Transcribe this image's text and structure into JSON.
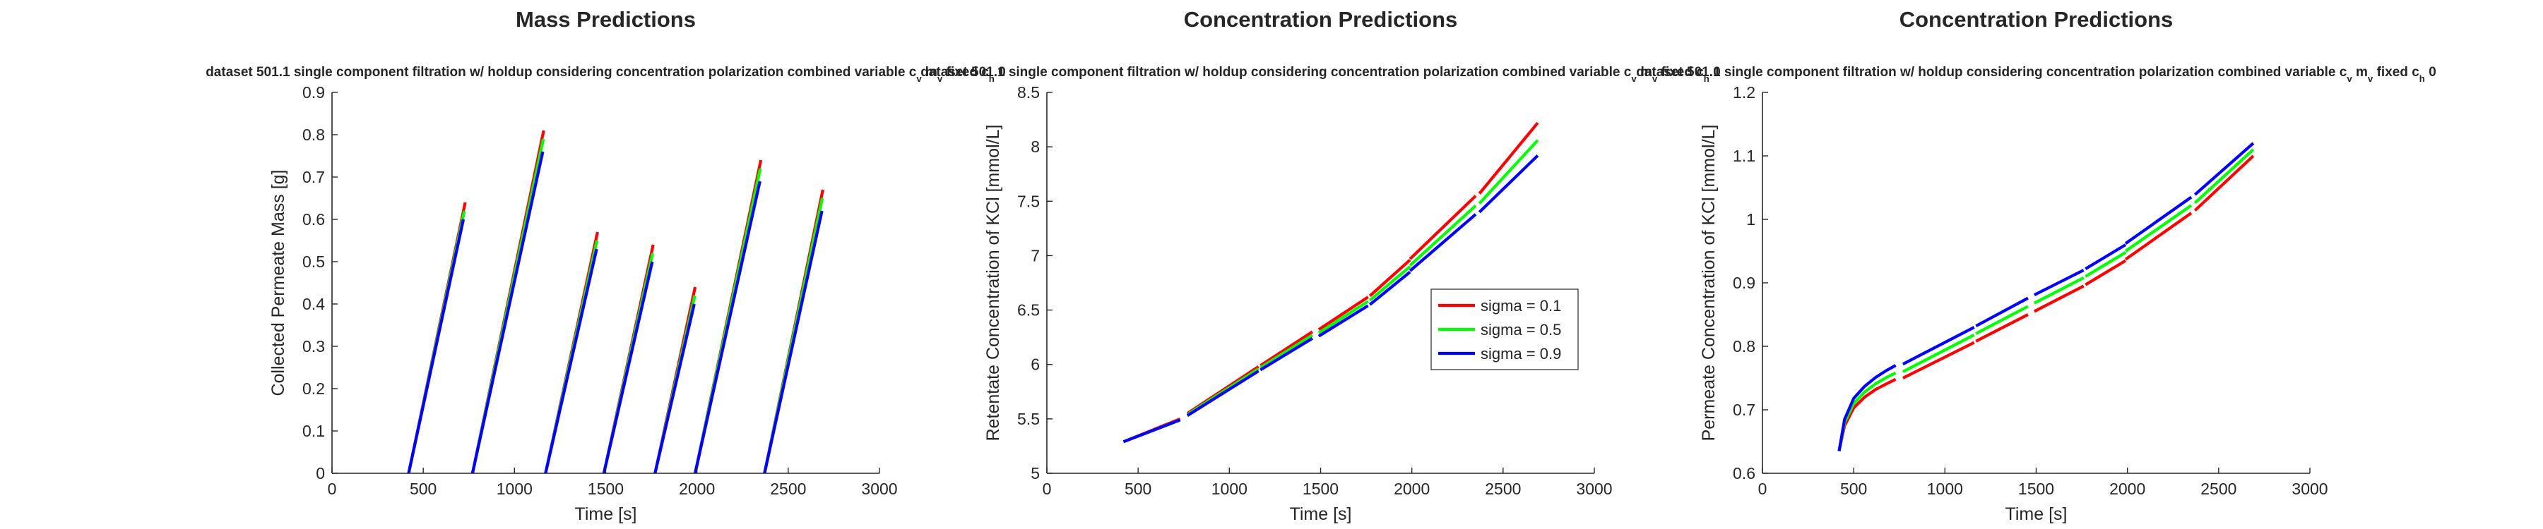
{
  "figure": {
    "legend_entries": [
      "sigma = 0.1",
      "sigma = 0.5",
      "sigma = 0.9"
    ],
    "colors": {
      "sigma_0_1": "#ff0000",
      "sigma_0_5": "#00ff00",
      "sigma_0_9": "#0000ff"
    }
  },
  "chart_data": [
    {
      "type": "line",
      "title": "Mass Predictions",
      "subtitle": "dataset 501.1 single component filtration w/ holdup considering concentration polarization combined variable c_v m_v fixed c_h 0",
      "xlabel": "Time [s]",
      "ylabel": "Collected Permeate Mass [g]",
      "xlim": [
        0,
        3000
      ],
      "ylim": [
        0,
        0.9
      ],
      "xticks": [
        "0",
        "500",
        "1000",
        "1500",
        "2000",
        "2500",
        "3000"
      ],
      "yticks": [
        "0",
        "0.1",
        "0.2",
        "0.3",
        "0.4",
        "0.5",
        "0.6",
        "0.7",
        "0.8",
        "0.9"
      ],
      "xtick_values": [
        0,
        500,
        1000,
        1500,
        2000,
        2500,
        3000
      ],
      "ytick_values": [
        0,
        0.1,
        0.2,
        0.3,
        0.4,
        0.5,
        0.6,
        0.7,
        0.8,
        0.9
      ],
      "legend": null,
      "series": [
        {
          "name": "sigma = 0.1",
          "color": "#ff0000",
          "segments": [
            [
              [
                420,
                0
              ],
              [
                730,
                0.64
              ]
            ],
            [
              [
                770,
                0
              ],
              [
                1160,
                0.81
              ]
            ],
            [
              [
                1170,
                0
              ],
              [
                1455,
                0.57
              ]
            ],
            [
              [
                1490,
                0
              ],
              [
                1760,
                0.54
              ]
            ],
            [
              [
                1770,
                0
              ],
              [
                1990,
                0.44
              ]
            ],
            [
              [
                1990,
                0
              ],
              [
                2350,
                0.74
              ]
            ],
            [
              [
                2370,
                0
              ],
              [
                2690,
                0.67
              ]
            ]
          ]
        },
        {
          "name": "sigma = 0.5",
          "color": "#00ff00",
          "segments": [
            [
              [
                420,
                0
              ],
              [
                725,
                0.62
              ]
            ],
            [
              [
                770,
                0
              ],
              [
                1158,
                0.79
              ]
            ],
            [
              [
                1170,
                0
              ],
              [
                1452,
                0.55
              ]
            ],
            [
              [
                1490,
                0
              ],
              [
                1757,
                0.52
              ]
            ],
            [
              [
                1770,
                0
              ],
              [
                1988,
                0.42
              ]
            ],
            [
              [
                1990,
                0
              ],
              [
                2347,
                0.72
              ]
            ],
            [
              [
                2370,
                0
              ],
              [
                2687,
                0.65
              ]
            ]
          ]
        },
        {
          "name": "sigma = 0.9",
          "color": "#0000ff",
          "segments": [
            [
              [
                420,
                0
              ],
              [
                720,
                0.6
              ]
            ],
            [
              [
                770,
                0
              ],
              [
                1155,
                0.76
              ]
            ],
            [
              [
                1170,
                0
              ],
              [
                1450,
                0.53
              ]
            ],
            [
              [
                1490,
                0
              ],
              [
                1755,
                0.5
              ]
            ],
            [
              [
                1770,
                0
              ],
              [
                1985,
                0.4
              ]
            ],
            [
              [
                1990,
                0
              ],
              [
                2345,
                0.69
              ]
            ],
            [
              [
                2370,
                0
              ],
              [
                2685,
                0.62
              ]
            ]
          ]
        }
      ]
    },
    {
      "type": "line",
      "title": "Concentration Predictions",
      "subtitle": "dataset 501.1 single component filtration w/ holdup considering concentration polarization combined variable c_v m_v fixed c_h 0",
      "xlabel": "Time [s]",
      "ylabel": "Retentate Concentration of KCl [mmol/L]",
      "xlim": [
        0,
        3000
      ],
      "ylim": [
        5,
        8.5
      ],
      "xticks": [
        "0",
        "500",
        "1000",
        "1500",
        "2000",
        "2500",
        "3000"
      ],
      "yticks": [
        "5",
        "5.5",
        "6",
        "6.5",
        "7",
        "7.5",
        "8",
        "8.5"
      ],
      "xtick_values": [
        0,
        500,
        1000,
        1500,
        2000,
        2500,
        3000
      ],
      "ytick_values": [
        5,
        5.5,
        6,
        6.5,
        7,
        7.5,
        8,
        8.5
      ],
      "legend": "center-right",
      "series": [
        {
          "name": "sigma = 0.1",
          "color": "#ff0000",
          "segments": [
            [
              [
                420,
                5.29
              ],
              [
                730,
                5.5
              ]
            ],
            [
              [
                770,
                5.55
              ],
              [
                1160,
                5.98
              ]
            ],
            [
              [
                1170,
                5.99
              ],
              [
                1455,
                6.3
              ]
            ],
            [
              [
                1490,
                6.32
              ],
              [
                1760,
                6.62
              ]
            ],
            [
              [
                1770,
                6.63
              ],
              [
                1990,
                6.96
              ]
            ],
            [
              [
                1990,
                6.97
              ],
              [
                2350,
                7.55
              ]
            ],
            [
              [
                2370,
                7.57
              ],
              [
                2690,
                8.22
              ]
            ]
          ]
        },
        {
          "name": "sigma = 0.5",
          "color": "#00ff00",
          "segments": [
            [
              [
                420,
                5.29
              ],
              [
                730,
                5.49
              ]
            ],
            [
              [
                770,
                5.54
              ],
              [
                1160,
                5.96
              ]
            ],
            [
              [
                1170,
                5.97
              ],
              [
                1455,
                6.27
              ]
            ],
            [
              [
                1490,
                6.29
              ],
              [
                1760,
                6.58
              ]
            ],
            [
              [
                1770,
                6.59
              ],
              [
                1990,
                6.9
              ]
            ],
            [
              [
                1990,
                6.91
              ],
              [
                2350,
                7.46
              ]
            ],
            [
              [
                2370,
                7.48
              ],
              [
                2690,
                8.06
              ]
            ]
          ]
        },
        {
          "name": "sigma = 0.9",
          "color": "#0000ff",
          "segments": [
            [
              [
                420,
                5.29
              ],
              [
                730,
                5.49
              ]
            ],
            [
              [
                770,
                5.53
              ],
              [
                1160,
                5.94
              ]
            ],
            [
              [
                1170,
                5.95
              ],
              [
                1455,
                6.24
              ]
            ],
            [
              [
                1490,
                6.26
              ],
              [
                1760,
                6.54
              ]
            ],
            [
              [
                1770,
                6.55
              ],
              [
                1990,
                6.85
              ]
            ],
            [
              [
                1990,
                6.86
              ],
              [
                2350,
                7.38
              ]
            ],
            [
              [
                2370,
                7.4
              ],
              [
                2690,
                7.92
              ]
            ]
          ]
        }
      ]
    },
    {
      "type": "line",
      "title": "Concentration Predictions",
      "subtitle": "dataset 501.1 single component filtration w/ holdup considering concentration polarization combined variable c_v m_v fixed c_h 0",
      "xlabel": "Time [s]",
      "ylabel": "Permeate Concentration of KCl [mmol/L]",
      "xlim": [
        0,
        3000
      ],
      "ylim": [
        0.6,
        1.2
      ],
      "xticks": [
        "0",
        "500",
        "1000",
        "1500",
        "2000",
        "2500",
        "3000"
      ],
      "yticks": [
        "0.6",
        "0.7",
        "0.8",
        "0.9",
        "1",
        "1.1",
        "1.2"
      ],
      "xtick_values": [
        0,
        500,
        1000,
        1500,
        2000,
        2500,
        3000
      ],
      "ytick_values": [
        0.6,
        0.7,
        0.8,
        0.9,
        1.0,
        1.1,
        1.2
      ],
      "legend": null,
      "series": [
        {
          "name": "sigma = 0.1",
          "color": "#ff0000",
          "segments": [
            [
              [
                420,
                0.635
              ],
              [
                450,
                0.675
              ],
              [
                500,
                0.703
              ],
              [
                560,
                0.72
              ],
              [
                620,
                0.732
              ],
              [
                680,
                0.741
              ],
              [
                730,
                0.748
              ]
            ],
            [
              [
                770,
                0.75
              ],
              [
                1160,
                0.806
              ]
            ],
            [
              [
                1170,
                0.808
              ],
              [
                1455,
                0.85
              ]
            ],
            [
              [
                1490,
                0.855
              ],
              [
                1760,
                0.895
              ]
            ],
            [
              [
                1770,
                0.897
              ],
              [
                1990,
                0.935
              ]
            ],
            [
              [
                1990,
                0.937
              ],
              [
                2350,
                1.01
              ]
            ],
            [
              [
                2370,
                1.014
              ],
              [
                2690,
                1.1
              ]
            ]
          ]
        },
        {
          "name": "sigma = 0.5",
          "color": "#00ff00",
          "segments": [
            [
              [
                420,
                0.635
              ],
              [
                450,
                0.68
              ],
              [
                500,
                0.71
              ],
              [
                560,
                0.728
              ],
              [
                620,
                0.741
              ],
              [
                680,
                0.751
              ],
              [
                730,
                0.758
              ]
            ],
            [
              [
                770,
                0.76
              ],
              [
                1160,
                0.818
              ]
            ],
            [
              [
                1170,
                0.82
              ],
              [
                1455,
                0.863
              ]
            ],
            [
              [
                1490,
                0.868
              ],
              [
                1760,
                0.908
              ]
            ],
            [
              [
                1770,
                0.91
              ],
              [
                1990,
                0.948
              ]
            ],
            [
              [
                1990,
                0.95
              ],
              [
                2350,
                1.022
              ]
            ],
            [
              [
                2370,
                1.026
              ],
              [
                2690,
                1.11
              ]
            ]
          ]
        },
        {
          "name": "sigma = 0.9",
          "color": "#0000ff",
          "segments": [
            [
              [
                420,
                0.635
              ],
              [
                450,
                0.685
              ],
              [
                500,
                0.718
              ],
              [
                560,
                0.737
              ],
              [
                620,
                0.751
              ],
              [
                680,
                0.762
              ],
              [
                730,
                0.77
              ]
            ],
            [
              [
                770,
                0.772
              ],
              [
                1160,
                0.83
              ]
            ],
            [
              [
                1170,
                0.832
              ],
              [
                1455,
                0.876
              ]
            ],
            [
              [
                1490,
                0.881
              ],
              [
                1760,
                0.92
              ]
            ],
            [
              [
                1770,
                0.922
              ],
              [
                1990,
                0.96
              ]
            ],
            [
              [
                1990,
                0.962
              ],
              [
                2350,
                1.035
              ]
            ],
            [
              [
                2370,
                1.039
              ],
              [
                2690,
                1.12
              ]
            ]
          ]
        }
      ]
    }
  ]
}
